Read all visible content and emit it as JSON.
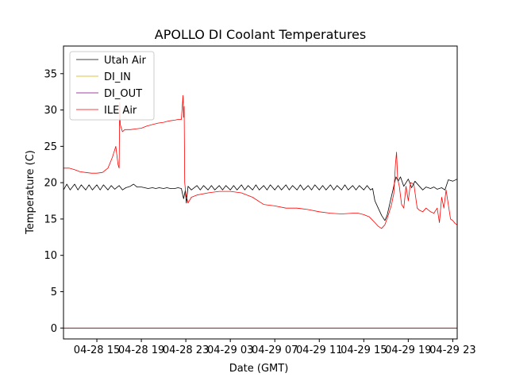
{
  "chart_data": {
    "type": "line",
    "title": "APOLLO DI Coolant Temperatures",
    "xlabel": "Date (GMT)",
    "ylabel": "Temperature (C)",
    "xlim": [
      12.0,
      47.4
    ],
    "ylim": [
      -1.5,
      38.8
    ],
    "x_units": "hours since 04-28 00:00 GMT",
    "x_ticks": [
      {
        "x": 15,
        "label": "04-28 15"
      },
      {
        "x": 19,
        "label": "04-28 19"
      },
      {
        "x": 23,
        "label": "04-28 23"
      },
      {
        "x": 27,
        "label": "04-29 03"
      },
      {
        "x": 31,
        "label": "04-29 07"
      },
      {
        "x": 35,
        "label": "04-29 11"
      },
      {
        "x": 39,
        "label": "04-29 15"
      },
      {
        "x": 43,
        "label": "04-29 19"
      },
      {
        "x": 47,
        "label": "04-29 23"
      }
    ],
    "y_ticks": [
      0,
      5,
      10,
      15,
      20,
      25,
      30,
      35
    ],
    "legend_position": "top-left",
    "series": [
      {
        "name": "Utah Air",
        "color": "#000000",
        "x": [
          12.0,
          12.3,
          12.6,
          13.0,
          13.3,
          13.6,
          14.0,
          14.3,
          14.6,
          15.0,
          15.3,
          15.6,
          16.0,
          16.3,
          16.6,
          17.0,
          17.3,
          17.6,
          18.0,
          18.3,
          18.6,
          19.0,
          19.3,
          19.6,
          20.0,
          20.3,
          20.6,
          21.0,
          21.3,
          21.6,
          22.0,
          22.3,
          22.6,
          22.8,
          22.95,
          23.05,
          23.2,
          23.5,
          24.0,
          24.3,
          24.6,
          25.0,
          25.3,
          25.6,
          26.0,
          26.3,
          26.6,
          27.0,
          27.3,
          27.6,
          28.0,
          28.3,
          28.6,
          29.0,
          29.3,
          29.6,
          30.0,
          30.3,
          30.6,
          31.0,
          31.3,
          31.6,
          32.0,
          32.3,
          32.6,
          33.0,
          33.3,
          33.6,
          34.0,
          34.3,
          34.6,
          35.0,
          35.3,
          35.6,
          36.0,
          36.3,
          36.6,
          37.0,
          37.3,
          37.6,
          38.0,
          38.3,
          38.6,
          39.0,
          39.3,
          39.6,
          39.8,
          40.0,
          40.3,
          40.6,
          40.9,
          41.1,
          41.4,
          41.7,
          41.9,
          42.1,
          42.3,
          42.6,
          43.0,
          43.3,
          43.6,
          44.0,
          44.3,
          44.6,
          45.0,
          45.3,
          45.6,
          46.0,
          46.3,
          46.6,
          47.0,
          47.4
        ],
        "y": [
          19.0,
          19.8,
          19.0,
          19.8,
          19.0,
          19.7,
          19.0,
          19.7,
          19.0,
          19.7,
          19.0,
          19.7,
          19.0,
          19.6,
          19.1,
          19.6,
          19.0,
          19.3,
          19.5,
          19.8,
          19.4,
          19.4,
          19.3,
          19.2,
          19.3,
          19.2,
          19.3,
          19.2,
          19.3,
          19.2,
          19.2,
          19.3,
          19.2,
          17.8,
          18.9,
          17.2,
          19.5,
          19.0,
          19.6,
          19.0,
          19.6,
          19.0,
          19.6,
          19.0,
          19.6,
          19.0,
          19.6,
          19.0,
          19.6,
          19.0,
          19.7,
          19.0,
          19.6,
          19.0,
          19.7,
          19.0,
          19.6,
          19.0,
          19.7,
          19.0,
          19.6,
          19.0,
          19.7,
          19.0,
          19.6,
          19.0,
          19.7,
          19.0,
          19.6,
          19.0,
          19.7,
          19.0,
          19.6,
          19.0,
          19.7,
          19.0,
          19.6,
          19.0,
          19.7,
          19.0,
          19.6,
          19.0,
          19.6,
          19.0,
          19.6,
          19.0,
          19.2,
          17.5,
          16.5,
          15.5,
          14.8,
          15.5,
          17.5,
          19.5,
          20.8,
          20.2,
          20.8,
          19.5,
          20.5,
          19.3,
          20.2,
          19.5,
          19.0,
          19.4,
          19.2,
          19.4,
          19.1,
          19.3,
          19.0,
          20.4,
          20.2,
          20.5
        ]
      },
      {
        "name": "DI_IN",
        "color": "#d4b000",
        "x": [
          12.0,
          47.4
        ],
        "y": [
          0.0,
          0.0
        ]
      },
      {
        "name": "DI_OUT",
        "color": "#800080",
        "x": [
          12.0,
          47.4
        ],
        "y": [
          0.0,
          0.0
        ]
      },
      {
        "name": "ILE Air",
        "color": "#ff0000",
        "x": [
          12.0,
          12.5,
          13.0,
          13.5,
          14.0,
          14.5,
          15.0,
          15.5,
          16.0,
          16.4,
          16.7,
          16.9,
          17.0,
          17.05,
          17.1,
          17.2,
          17.3,
          17.5,
          18.0,
          18.5,
          19.0,
          19.5,
          20.0,
          20.5,
          21.0,
          21.5,
          22.0,
          22.3,
          22.6,
          22.75,
          22.8,
          22.85,
          22.9,
          23.0,
          23.2,
          23.5,
          24.0,
          25.0,
          26.0,
          27.0,
          28.0,
          29.0,
          30.0,
          31.0,
          32.0,
          33.0,
          34.0,
          35.0,
          36.0,
          37.0,
          38.0,
          38.5,
          39.0,
          39.5,
          40.0,
          40.3,
          40.6,
          40.9,
          41.2,
          41.5,
          41.7,
          41.85,
          41.95,
          42.05,
          42.2,
          42.4,
          42.6,
          42.8,
          43.0,
          43.2,
          43.5,
          43.8,
          44.0,
          44.3,
          44.6,
          45.0,
          45.3,
          45.6,
          45.8,
          46.0,
          46.2,
          46.4,
          46.6,
          46.8,
          47.0,
          47.2,
          47.4
        ],
        "y": [
          22.0,
          22.0,
          21.8,
          21.5,
          21.4,
          21.3,
          21.3,
          21.4,
          22.0,
          23.5,
          25.0,
          22.5,
          22.0,
          31.0,
          28.0,
          27.5,
          27.0,
          27.3,
          27.3,
          27.4,
          27.5,
          27.8,
          28.0,
          28.2,
          28.3,
          28.5,
          28.6,
          28.7,
          28.7,
          32.0,
          29.0,
          30.5,
          20.0,
          18.5,
          17.2,
          18.0,
          18.3,
          18.6,
          18.8,
          18.8,
          18.6,
          18.0,
          17.0,
          16.8,
          16.5,
          16.5,
          16.3,
          16.0,
          15.8,
          15.7,
          15.8,
          15.8,
          15.6,
          15.3,
          14.5,
          14.0,
          13.7,
          14.2,
          15.5,
          17.0,
          18.5,
          22.5,
          24.2,
          20.5,
          19.5,
          17.0,
          16.5,
          19.5,
          17.5,
          20.0,
          19.8,
          16.5,
          16.2,
          16.0,
          16.5,
          16.0,
          15.8,
          16.5,
          14.5,
          18.0,
          16.5,
          19.0,
          17.0,
          15.0,
          14.8,
          14.4,
          14.2
        ]
      }
    ]
  }
}
